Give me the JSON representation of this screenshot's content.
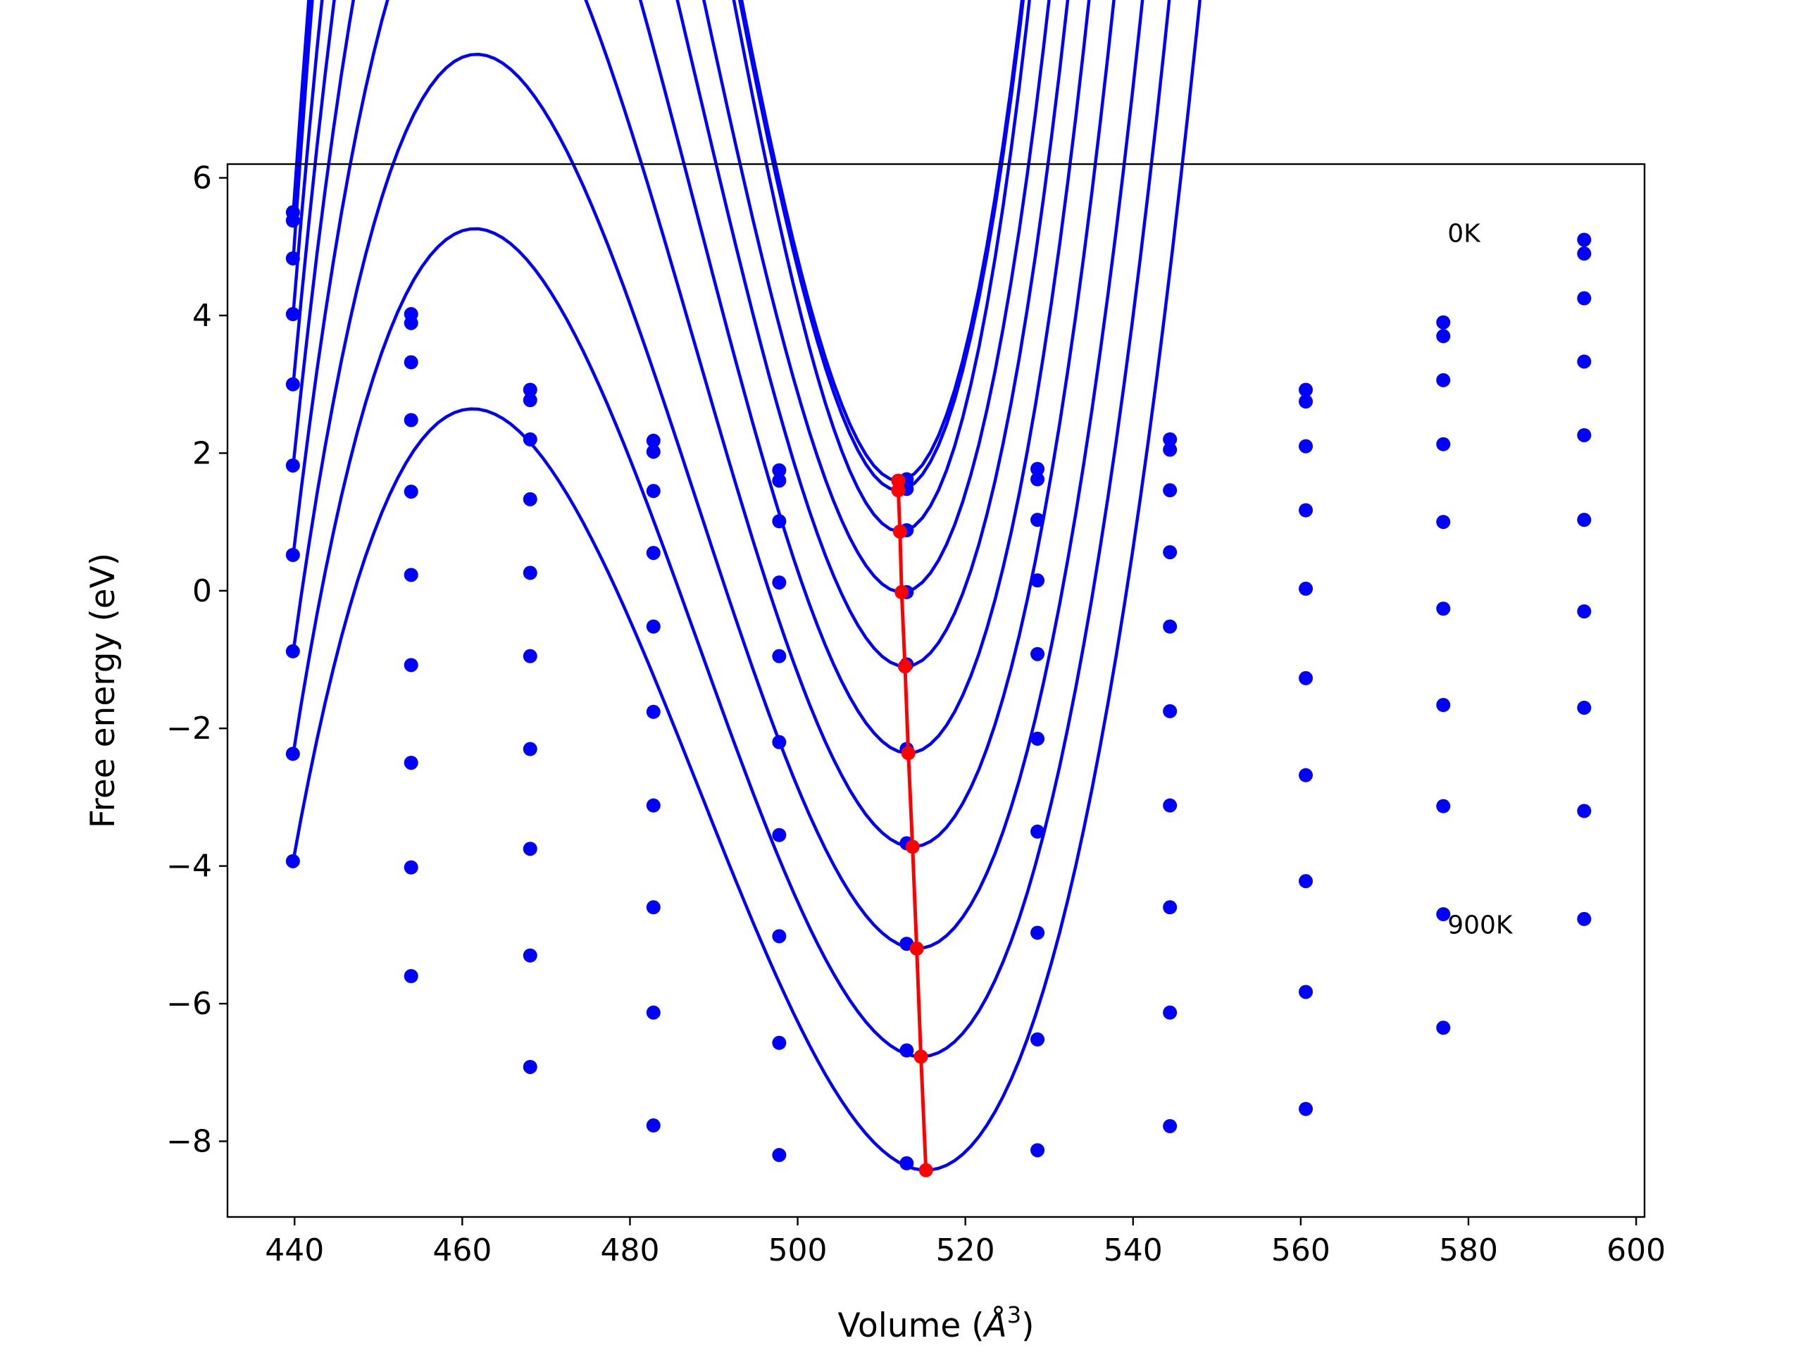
{
  "chart_data": {
    "type": "line",
    "title": "",
    "xlabel": "Volume (Å³)",
    "xlabel_main": "Volume (",
    "xlabel_unit": "Å",
    "xlabel_sup": "3",
    "xlabel_close": ")",
    "ylabel": "Free energy (eV)",
    "xlim": [
      432,
      601
    ],
    "ylim": [
      -9.1,
      6.2
    ],
    "xticks": [
      440,
      460,
      480,
      500,
      520,
      540,
      560,
      580,
      600
    ],
    "yticks": [
      -8,
      -6,
      -4,
      -2,
      0,
      2,
      4,
      6
    ],
    "xtick_labels": [
      "440",
      "460",
      "480",
      "500",
      "520",
      "540",
      "560",
      "580",
      "600"
    ],
    "ytick_labels": [
      "−8",
      "−6",
      "−4",
      "−2",
      "0",
      "2",
      "4",
      "6"
    ],
    "grid": false,
    "legend": "none",
    "annotations": [
      {
        "text": "0K",
        "x": 577.5,
        "y": 5.2
      },
      {
        "text": "900K",
        "x": 577.5,
        "y": -4.85
      }
    ],
    "x": [
      439.8,
      453.9,
      468.1,
      482.8,
      497.8,
      513.0,
      528.6,
      544.4,
      560.6,
      577.0,
      593.8
    ],
    "series": [
      {
        "values": [
          5.5,
          4.02,
          2.92,
          2.18,
          1.75,
          1.62,
          1.77,
          2.2,
          2.92,
          3.9,
          5.1
        ],
        "fit": [
          5.42,
          1.6,
          512.0,
          0.00036
        ]
      },
      {
        "values": [
          5.38,
          3.89,
          2.77,
          2.02,
          1.6,
          1.48,
          1.62,
          2.05,
          2.75,
          3.7,
          4.9
        ],
        "fit": [
          5.3,
          1.46,
          512.0,
          0.00036
        ]
      },
      {
        "values": [
          4.83,
          3.32,
          2.2,
          1.45,
          1.01,
          0.88,
          1.03,
          1.46,
          2.1,
          3.06,
          4.25
        ],
        "fit": [
          4.75,
          0.86,
          512.2,
          0.00036
        ]
      },
      {
        "values": [
          4.02,
          2.48,
          1.33,
          0.55,
          0.12,
          -0.02,
          0.15,
          0.56,
          1.17,
          2.13,
          3.33
        ],
        "fit": [
          3.98,
          -0.02,
          512.4,
          0.0003
        ]
      },
      {
        "values": [
          3.0,
          1.44,
          0.26,
          -0.52,
          -0.95,
          -1.07,
          -0.92,
          -0.52,
          0.03,
          1.0,
          2.26
        ],
        "fit": [
          2.95,
          -1.1,
          512.8,
          0.00027
        ]
      },
      {
        "values": [
          1.82,
          0.23,
          -0.95,
          -1.76,
          -2.2,
          -2.3,
          -2.15,
          -1.75,
          -1.27,
          -0.26,
          1.03
        ],
        "fit": [
          1.78,
          -2.36,
          513.2,
          0.00024
        ]
      },
      {
        "values": [
          0.52,
          -1.08,
          -2.3,
          -3.12,
          -3.55,
          -3.67,
          -3.5,
          -3.12,
          -2.68,
          -1.66,
          -0.3
        ],
        "fit": [
          0.48,
          -3.72,
          513.7,
          0.00021
        ]
      },
      {
        "values": [
          -0.88,
          -2.5,
          -3.75,
          -4.6,
          -5.02,
          -5.13,
          -4.97,
          -4.6,
          -4.22,
          -3.13,
          -1.7
        ],
        "fit": [
          -0.92,
          -5.2,
          514.2,
          0.00018
        ]
      },
      {
        "values": [
          -2.37,
          -4.02,
          -5.3,
          -6.13,
          -6.57,
          -6.68,
          -6.52,
          -6.13,
          -5.83,
          -4.7,
          -3.2
        ],
        "fit": [
          -2.4,
          -6.77,
          514.7,
          0.00016
        ]
      },
      {
        "values": [
          -3.93,
          -5.6,
          -6.92,
          -7.77,
          -8.2,
          -8.32,
          -8.13,
          -7.78,
          -7.53,
          -6.35,
          -4.77
        ],
        "fit": [
          -3.95,
          -8.42,
          515.3,
          0.00014
        ]
      }
    ],
    "minima": {
      "x": [
        512.0,
        512.0,
        512.2,
        512.4,
        512.8,
        513.2,
        513.7,
        514.2,
        514.7,
        515.3
      ],
      "y": [
        1.6,
        1.46,
        0.86,
        -0.02,
        -1.1,
        -2.36,
        -3.72,
        -5.2,
        -6.77,
        -8.42
      ]
    },
    "colors": {
      "curves": "#0000ff",
      "minima": "#ff0000",
      "axes": "#000000"
    }
  }
}
